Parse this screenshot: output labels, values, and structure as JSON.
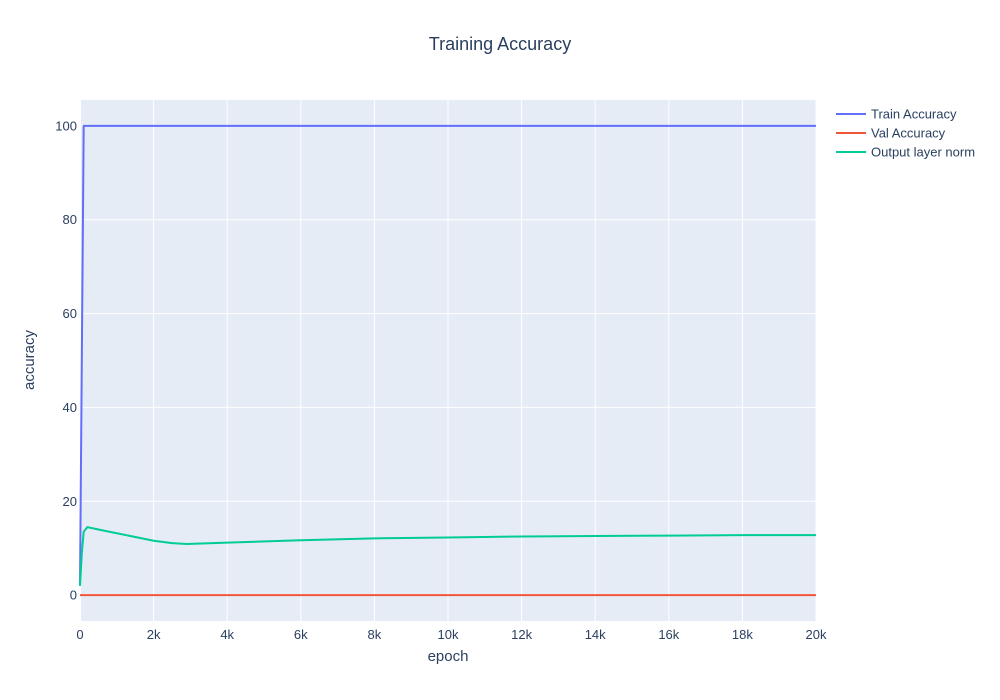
{
  "chart_data": {
    "type": "line",
    "title": "Training Accuracy",
    "xlabel": "epoch",
    "ylabel": "accuracy",
    "xlim": [
      0,
      20000
    ],
    "ylim": [
      -5.5,
      105.5
    ],
    "x_ticks": [
      0,
      2000,
      4000,
      6000,
      8000,
      10000,
      12000,
      14000,
      16000,
      18000,
      20000
    ],
    "x_tick_labels": [
      "0",
      "2k",
      "4k",
      "6k",
      "8k",
      "10k",
      "12k",
      "14k",
      "16k",
      "18k",
      "20k"
    ],
    "y_ticks": [
      0,
      20,
      40,
      60,
      80,
      100
    ],
    "y_tick_labels": [
      "0",
      "20",
      "40",
      "60",
      "80",
      "100"
    ],
    "grid": true,
    "legend_position": "top-right",
    "plot_bg": "#e5ecf6",
    "series": [
      {
        "name": "Train Accuracy",
        "color": "#636efa",
        "x": [
          0,
          100,
          20000
        ],
        "y": [
          2,
          100,
          100
        ]
      },
      {
        "name": "Val Accuracy",
        "color": "#ef553b",
        "x": [
          0,
          20000
        ],
        "y": [
          0,
          0
        ]
      },
      {
        "name": "Output layer norm",
        "color": "#00cc96",
        "x": [
          0,
          50,
          100,
          200,
          500,
          1000,
          2000,
          2500,
          2900,
          4000,
          6000,
          8000,
          10000,
          12000,
          14000,
          16000,
          18000,
          20000
        ],
        "y": [
          2,
          9,
          13.5,
          14.5,
          14.0,
          13.2,
          11.6,
          11.1,
          10.9,
          11.2,
          11.7,
          12.1,
          12.3,
          12.5,
          12.6,
          12.7,
          12.8,
          12.8
        ]
      }
    ]
  }
}
